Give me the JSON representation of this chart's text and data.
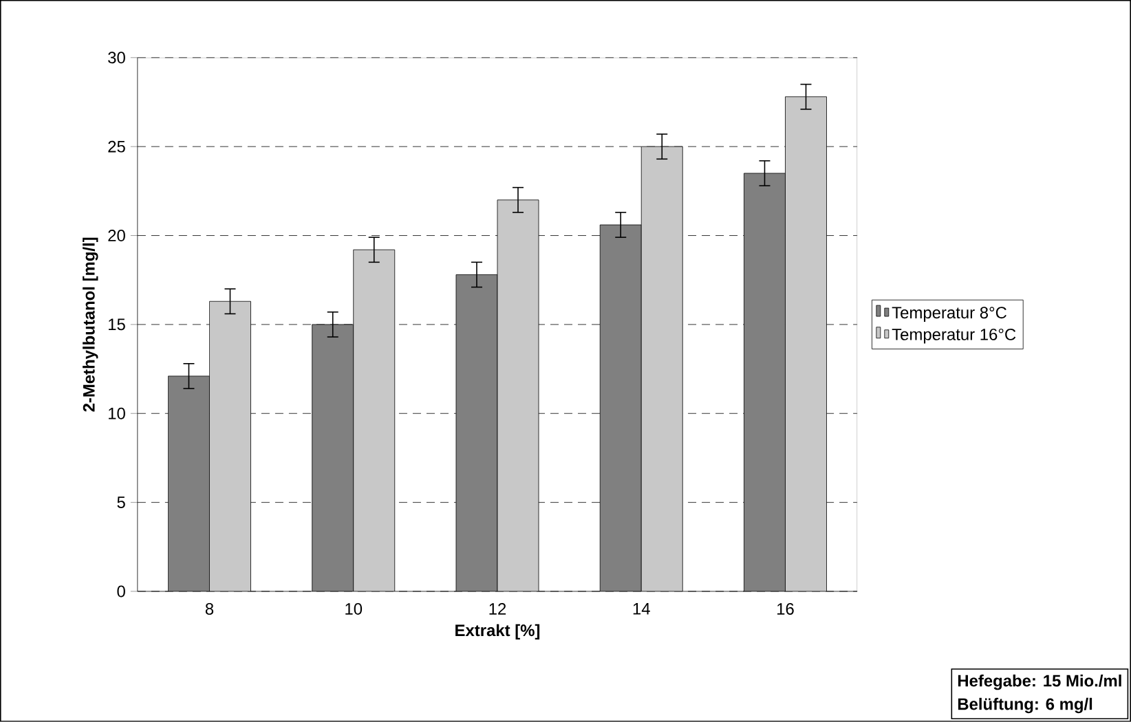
{
  "chart_data": {
    "type": "bar",
    "xlabel": "Extrakt [%]",
    "ylabel": "2-Methylbutanol [mg/l]",
    "categories": [
      "8",
      "10",
      "12",
      "14",
      "16"
    ],
    "series": [
      {
        "name": "Temperatur 8°C",
        "color": "#808080",
        "values": [
          12.1,
          15.0,
          17.8,
          20.6,
          23.5
        ],
        "errors": [
          0.7,
          0.7,
          0.7,
          0.7,
          0.7
        ]
      },
      {
        "name": "Temperatur 16°C",
        "color": "#c8c8c8",
        "values": [
          16.3,
          19.2,
          22.0,
          25.0,
          27.8
        ],
        "errors": [
          0.7,
          0.7,
          0.7,
          0.7,
          0.7
        ]
      }
    ],
    "ylim": [
      0,
      30
    ],
    "yticks": [
      0,
      5,
      10,
      15,
      20,
      25,
      30
    ],
    "grid": "y",
    "legend": "right",
    "annotations": [
      "Hefegabe: 15 Mio./ml",
      "Belüftung: 6 mg/l"
    ]
  }
}
